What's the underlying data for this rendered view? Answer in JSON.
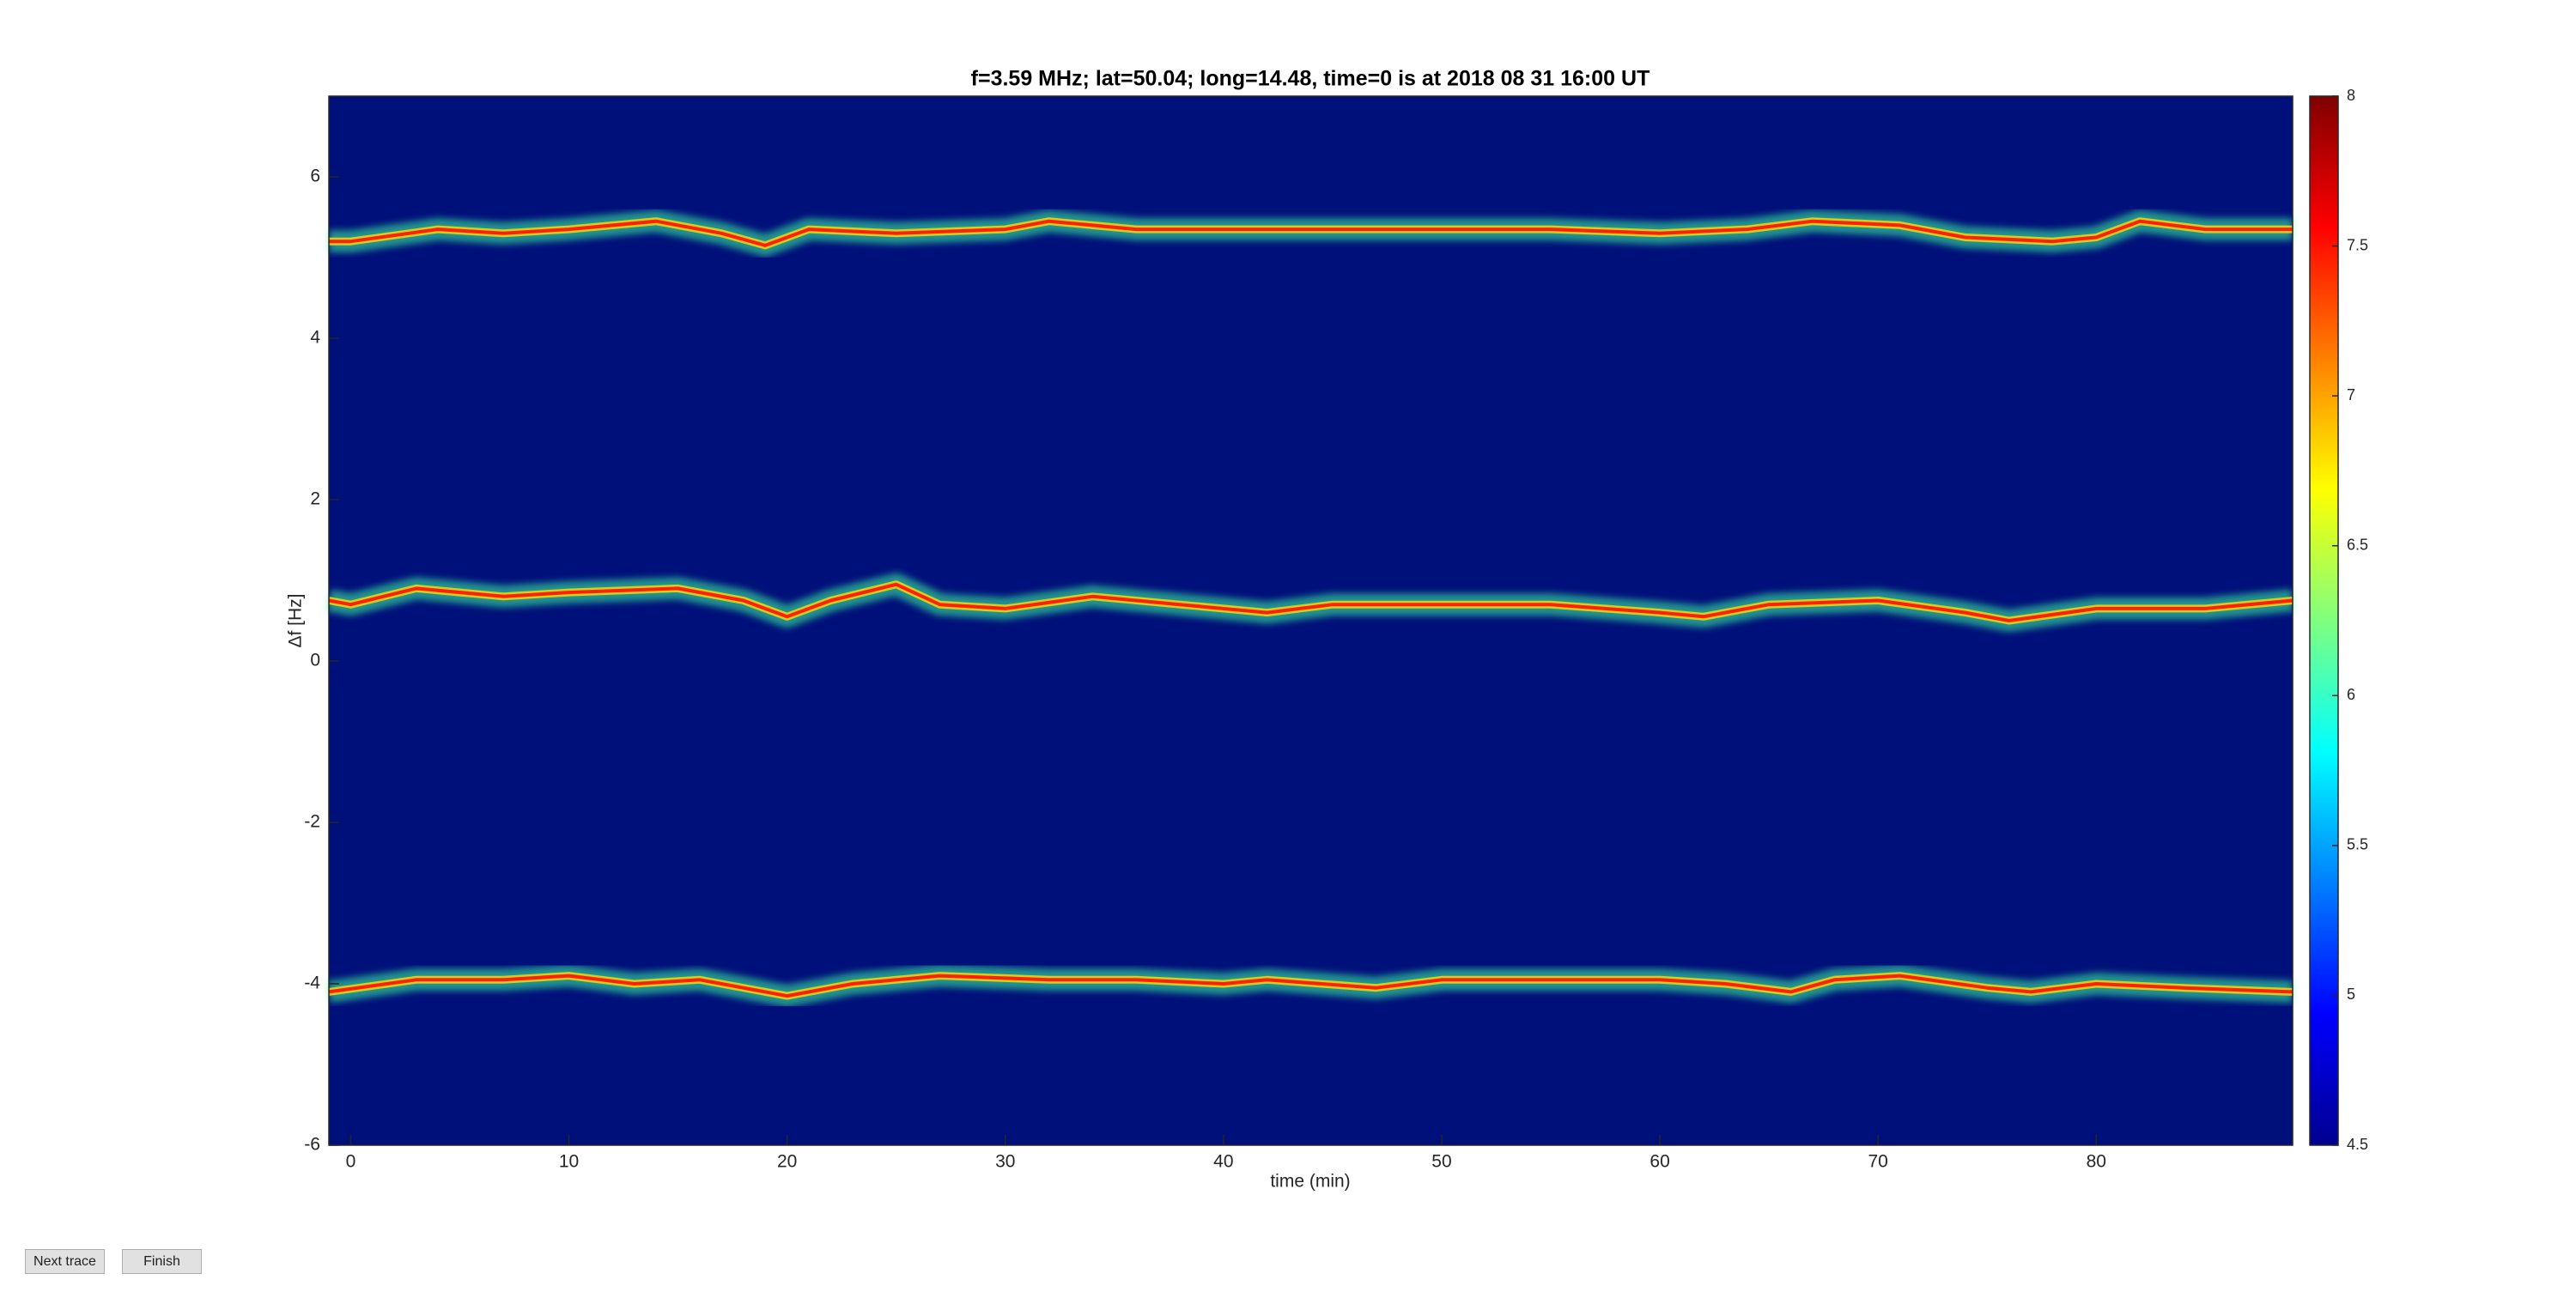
{
  "chart_data": {
    "type": "spectrogram",
    "title": "f=3.59 MHz;  lat=50.04; long=14.48, time=0 is at 2018 08 31 16:00 UT",
    "x_label": "time (min)",
    "y_label": "Δf [Hz]",
    "xlim": [
      -1,
      89
    ],
    "xticks": [
      0,
      10,
      20,
      30,
      40,
      50,
      60,
      70,
      80
    ],
    "ylim": [
      -6,
      7
    ],
    "yticks": [
      -6,
      -4,
      -2,
      0,
      2,
      4,
      6
    ],
    "colormap": "jet",
    "clim": [
      4.5,
      8
    ],
    "cticks": [
      4.5,
      5,
      5.5,
      6,
      6.5,
      7,
      7.5,
      8
    ],
    "background_color": "#00107a",
    "series": [
      {
        "color": "#ff2000",
        "x": [
          -1,
          0,
          4,
          7,
          10,
          14,
          17,
          19,
          21,
          25,
          30,
          32,
          36,
          40,
          45,
          50,
          55,
          60,
          64,
          67,
          71,
          74,
          78,
          80,
          82,
          85,
          89
        ],
        "values": [
          5.2,
          5.2,
          5.35,
          5.3,
          5.35,
          5.45,
          5.3,
          5.15,
          5.35,
          5.3,
          5.35,
          5.45,
          5.35,
          5.35,
          5.35,
          5.35,
          5.35,
          5.3,
          5.35,
          5.45,
          5.4,
          5.25,
          5.2,
          5.25,
          5.45,
          5.35,
          5.35
        ]
      },
      {
        "color": "#ff2000",
        "x": [
          -1,
          0,
          3,
          7,
          10,
          15,
          18,
          20,
          22,
          25,
          27,
          30,
          34,
          38,
          42,
          45,
          50,
          55,
          60,
          62,
          65,
          70,
          74,
          76,
          80,
          85,
          89
        ],
        "values": [
          0.75,
          0.7,
          0.9,
          0.8,
          0.85,
          0.9,
          0.75,
          0.55,
          0.75,
          0.95,
          0.7,
          0.65,
          0.8,
          0.7,
          0.6,
          0.7,
          0.7,
          0.7,
          0.6,
          0.55,
          0.7,
          0.75,
          0.6,
          0.5,
          0.65,
          0.65,
          0.75
        ]
      },
      {
        "color": "#ff2000",
        "x": [
          -1,
          3,
          7,
          10,
          13,
          16,
          20,
          23,
          27,
          32,
          36,
          40,
          42,
          47,
          50,
          55,
          60,
          63,
          66,
          68,
          71,
          75,
          77,
          80,
          84,
          89
        ],
        "values": [
          -4.1,
          -3.95,
          -3.95,
          -3.9,
          -4.0,
          -3.95,
          -4.15,
          -4.0,
          -3.9,
          -3.95,
          -3.95,
          -4.0,
          -3.95,
          -4.05,
          -3.95,
          -3.95,
          -3.95,
          -4.0,
          -4.1,
          -3.95,
          -3.9,
          -4.05,
          -4.1,
          -4.0,
          -4.05,
          -4.1
        ]
      }
    ]
  },
  "buttons": [
    "Next trace",
    "Finish"
  ]
}
